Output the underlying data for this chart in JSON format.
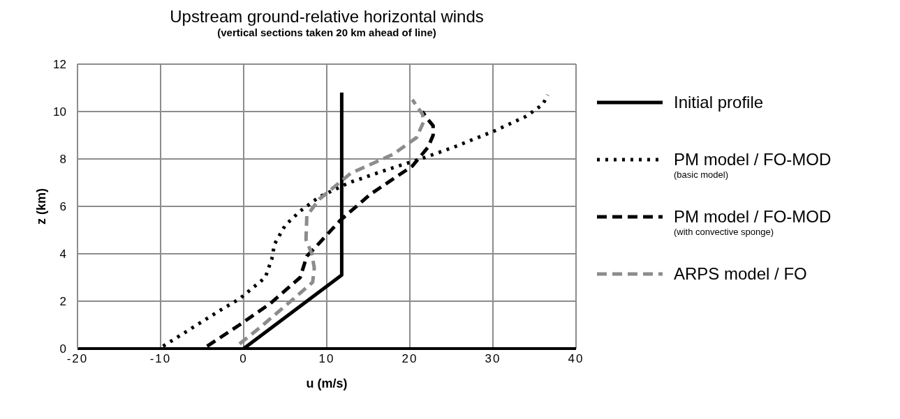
{
  "chart_data": {
    "type": "line",
    "title": "Upstream ground-relative horizontal winds",
    "subtitle": "(vertical sections taken 20 km ahead of line)",
    "xlabel": "u (m/s)",
    "ylabel": "z (km)",
    "xlim": [
      -20,
      40
    ],
    "xticks": [
      -20,
      -10,
      0,
      10,
      20,
      30,
      40
    ],
    "ylim": [
      0,
      12
    ],
    "yticks": [
      0,
      2,
      4,
      6,
      8,
      10,
      12
    ],
    "grid": true,
    "legend": "right",
    "marker": "none",
    "series": [
      {
        "name": "Initial profile",
        "color": "#000000",
        "line_style": "solid",
        "x": [
          0,
          11.8,
          11.8
        ],
        "values": [
          0,
          3.1,
          10.8
        ]
      },
      {
        "name": "PM model / FO-MOD\n(basic model)",
        "color": "#000000",
        "line_style": "dotted",
        "x": [
          -9.7,
          -2.9,
          -0.5,
          2.6,
          3.4,
          3.7,
          5.0,
          6.8,
          9.1,
          12.7,
          17.7,
          21.3,
          25.3,
          30.3,
          34,
          36,
          36.6
        ],
        "values": [
          0.1,
          1.6,
          2.1,
          3.0,
          3.8,
          4.4,
          5.2,
          5.8,
          6.4,
          7.0,
          7.6,
          8.0,
          8.5,
          9.2,
          9.8,
          10.3,
          10.7
        ]
      },
      {
        "name": "PM model / FO-MOD\n(with convective sponge)",
        "color": "#000000",
        "line_style": "dashed",
        "x": [
          -4.4,
          -0.5,
          3.2,
          6.8,
          7.6,
          8.7,
          11.6,
          15.2,
          20.3,
          22.2,
          22.8,
          22.8,
          22.1,
          21.5
        ],
        "values": [
          0.1,
          1.0,
          1.9,
          3.0,
          3.9,
          4.3,
          5.4,
          6.5,
          7.7,
          8.5,
          9.0,
          9.4,
          9.7,
          10.0
        ]
      },
      {
        "name": "ARPS model / FO",
        "color": "#8c8c8c",
        "line_style": "dashed",
        "x": [
          -0.5,
          2.0,
          6.0,
          8.3,
          8.5,
          8.2,
          7.5,
          7.6,
          9.1,
          12.9,
          18,
          20.8,
          21.7,
          21.5,
          20.3
        ],
        "values": [
          0.2,
          0.9,
          2.1,
          2.8,
          3.4,
          4.0,
          4.6,
          5.6,
          6.3,
          7.4,
          8.2,
          8.9,
          9.6,
          9.9,
          10.5
        ]
      }
    ]
  }
}
